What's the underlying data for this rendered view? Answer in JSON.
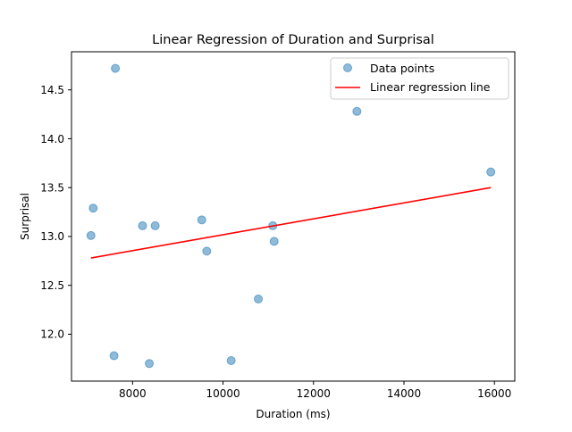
{
  "chart_data": {
    "type": "scatter",
    "title": "Linear Regression of Duration and Surprisal",
    "xlabel": "Duration (ms)",
    "ylabel": "Surprisal",
    "xlim": [
      6650,
      16450
    ],
    "ylim": [
      11.52,
      14.89
    ],
    "x_ticks": [
      8000,
      10000,
      12000,
      14000,
      16000
    ],
    "x_tick_labels": [
      "8000",
      "10000",
      "12000",
      "14000",
      "16000"
    ],
    "y_ticks": [
      12.0,
      12.5,
      13.0,
      13.5,
      14.0,
      14.5
    ],
    "y_tick_labels": [
      "12.0",
      "12.5",
      "13.0",
      "13.5",
      "14.0",
      "14.5"
    ],
    "grid": false,
    "legend_position": "upper right",
    "series": [
      {
        "name": "Data points",
        "kind": "scatter",
        "color": "#1f77b4",
        "points": [
          {
            "x": 7620,
            "y": 14.72
          },
          {
            "x": 12960,
            "y": 14.28
          },
          {
            "x": 15920,
            "y": 13.66
          },
          {
            "x": 7130,
            "y": 13.29
          },
          {
            "x": 9530,
            "y": 13.17
          },
          {
            "x": 8220,
            "y": 13.11
          },
          {
            "x": 8500,
            "y": 13.11
          },
          {
            "x": 11100,
            "y": 13.11
          },
          {
            "x": 7080,
            "y": 13.01
          },
          {
            "x": 11130,
            "y": 12.95
          },
          {
            "x": 9640,
            "y": 12.85
          },
          {
            "x": 10780,
            "y": 12.36
          },
          {
            "x": 7590,
            "y": 11.78
          },
          {
            "x": 10180,
            "y": 11.73
          },
          {
            "x": 8370,
            "y": 11.7
          }
        ]
      },
      {
        "name": "Linear regression line",
        "kind": "line",
        "color": "#ff0000",
        "points": [
          {
            "x": 7080,
            "y": 12.78
          },
          {
            "x": 15920,
            "y": 13.5
          }
        ]
      }
    ]
  }
}
